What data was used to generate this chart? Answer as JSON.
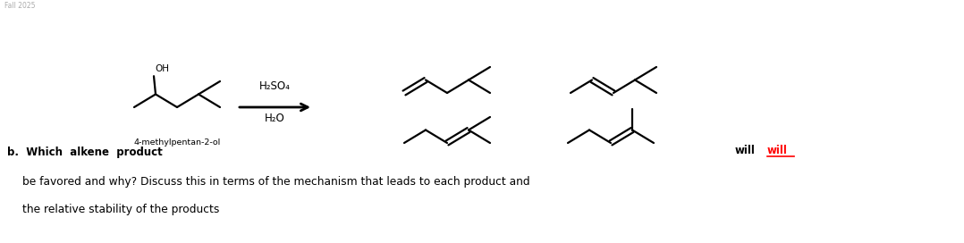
{
  "background_color": "#ffffff",
  "reagent_above": "H₂SO₄",
  "reagent_below": "H₂O",
  "substrate_label": "4-methylpentan-2-ol",
  "question_line1": "b.  Which  alkene  product",
  "question_line2": "be favored and why? Discuss this in terms of the mechanism that leads to each product and",
  "question_line3": "the relative stability of the products",
  "will_black": "will",
  "will_red": "will"
}
